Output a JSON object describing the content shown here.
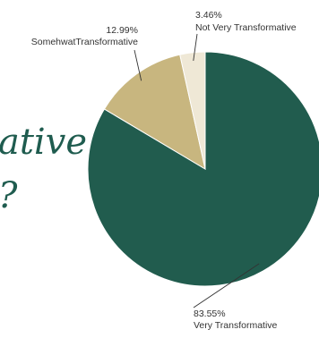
{
  "background_text": {
    "line1": "ative",
    "line2": "?"
  },
  "colors": {
    "background_text": "#1f5c4f",
    "leader": "#333333",
    "label": "#333333",
    "slice_stroke": "#ffffff"
  },
  "chart_data": {
    "type": "pie",
    "title": "",
    "start_angle_deg": 0,
    "direction": "clockwise",
    "legend": "none",
    "slices": [
      {
        "label": "Very Transformative",
        "value": 83.55,
        "value_label": "83.55%",
        "color": "#215c4e"
      },
      {
        "label": "SomehwatTransformative",
        "value": 12.99,
        "value_label": "12.99%",
        "color": "#c8b67f"
      },
      {
        "label": "Not Very Transformative",
        "value": 3.46,
        "value_label": "3.46%",
        "color": "#efe8d6"
      }
    ]
  }
}
